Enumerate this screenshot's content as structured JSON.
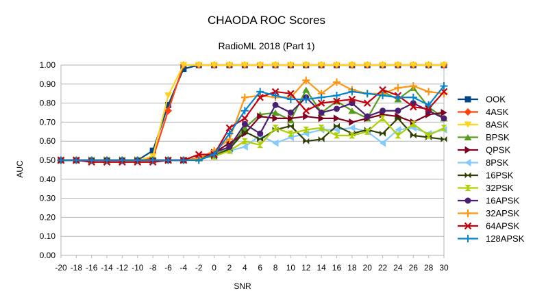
{
  "chart_data": {
    "type": "line",
    "title": "CHAODA ROC Scores",
    "subtitle": "RadioML 2018 (Part 1)",
    "xlabel": "SNR",
    "ylabel": "AUC",
    "ylim": [
      0,
      1
    ],
    "yticks": [
      "0.00",
      "0.10",
      "0.20",
      "0.30",
      "0.40",
      "0.50",
      "0.60",
      "0.70",
      "0.80",
      "0.90",
      "1.00"
    ],
    "x": [
      -20,
      -18,
      -16,
      -14,
      -12,
      -10,
      -8,
      -6,
      -4,
      -2,
      0,
      2,
      4,
      6,
      8,
      10,
      12,
      14,
      16,
      18,
      20,
      22,
      24,
      26,
      28,
      30
    ],
    "grid": true,
    "legend_position": "right",
    "series": [
      {
        "name": "OOK",
        "color": "#004586",
        "marker": "square",
        "values": [
          0.5,
          0.5,
          0.5,
          0.5,
          0.5,
          0.5,
          0.55,
          0.79,
          0.98,
          1.0,
          1.0,
          1.0,
          1.0,
          1.0,
          1.0,
          1.0,
          1.0,
          1.0,
          1.0,
          1.0,
          1.0,
          1.0,
          1.0,
          1.0,
          1.0,
          1.0
        ]
      },
      {
        "name": "4ASK",
        "color": "#ff420e",
        "marker": "diamond",
        "values": [
          0.5,
          0.5,
          0.5,
          0.5,
          0.5,
          0.5,
          0.51,
          0.76,
          1.0,
          1.0,
          1.0,
          1.0,
          1.0,
          1.0,
          1.0,
          1.0,
          1.0,
          1.0,
          1.0,
          1.0,
          1.0,
          1.0,
          1.0,
          1.0,
          1.0,
          1.0
        ]
      },
      {
        "name": "8ASK",
        "color": "#ffd320",
        "marker": "triangle-down",
        "values": [
          0.5,
          0.5,
          0.5,
          0.5,
          0.5,
          0.5,
          0.52,
          0.84,
          1.0,
          1.0,
          1.0,
          1.0,
          1.0,
          1.0,
          1.0,
          1.0,
          1.0,
          1.0,
          1.0,
          1.0,
          1.0,
          1.0,
          1.0,
          1.0,
          1.0,
          1.0
        ]
      },
      {
        "name": "BPSK",
        "color": "#579d1c",
        "marker": "triangle-up",
        "values": [
          0.5,
          0.5,
          0.5,
          0.5,
          0.5,
          0.5,
          0.5,
          0.5,
          0.5,
          0.51,
          0.53,
          0.56,
          0.67,
          0.74,
          0.75,
          0.71,
          0.87,
          0.75,
          0.81,
          0.76,
          0.72,
          0.86,
          0.82,
          0.88,
          0.78,
          0.72
        ]
      },
      {
        "name": "QPSK",
        "color": "#7e0021",
        "marker": "triangle-right",
        "values": [
          0.5,
          0.5,
          0.5,
          0.5,
          0.5,
          0.5,
          0.5,
          0.5,
          0.5,
          0.51,
          0.54,
          0.59,
          0.64,
          0.73,
          0.72,
          0.72,
          0.73,
          0.72,
          0.72,
          0.7,
          0.72,
          0.74,
          0.73,
          0.7,
          0.74,
          0.75
        ]
      },
      {
        "name": "8PSK",
        "color": "#83caff",
        "marker": "triangle-left",
        "values": [
          0.5,
          0.5,
          0.5,
          0.5,
          0.5,
          0.5,
          0.5,
          0.5,
          0.5,
          0.51,
          0.52,
          0.55,
          0.57,
          0.63,
          0.59,
          0.62,
          0.64,
          0.66,
          0.66,
          0.67,
          0.65,
          0.59,
          0.66,
          0.67,
          0.64,
          0.66
        ]
      },
      {
        "name": "16PSK",
        "color": "#314004",
        "marker": "bowtie",
        "values": [
          0.5,
          0.5,
          0.5,
          0.5,
          0.5,
          0.5,
          0.5,
          0.5,
          0.5,
          0.51,
          0.52,
          0.56,
          0.65,
          0.61,
          0.66,
          0.68,
          0.6,
          0.61,
          0.68,
          0.64,
          0.66,
          0.64,
          0.72,
          0.63,
          0.62,
          0.61
        ]
      },
      {
        "name": "32PSK",
        "color": "#aecf00",
        "marker": "hourglass",
        "values": [
          0.5,
          0.5,
          0.5,
          0.5,
          0.5,
          0.5,
          0.5,
          0.5,
          0.5,
          0.51,
          0.52,
          0.55,
          0.6,
          0.58,
          0.67,
          0.64,
          0.66,
          0.67,
          0.63,
          0.63,
          0.65,
          0.72,
          0.63,
          0.69,
          0.63,
          0.67
        ]
      },
      {
        "name": "16APSK",
        "color": "#4b1f6f",
        "marker": "circle",
        "values": [
          0.5,
          0.5,
          0.5,
          0.5,
          0.5,
          0.5,
          0.5,
          0.5,
          0.5,
          0.51,
          0.54,
          0.57,
          0.69,
          0.64,
          0.79,
          0.75,
          0.83,
          0.75,
          0.77,
          0.8,
          0.73,
          0.76,
          0.76,
          0.8,
          0.76,
          0.72
        ]
      },
      {
        "name": "32APSK",
        "color": "#ff950e",
        "marker": "plus",
        "values": [
          0.5,
          0.5,
          0.5,
          0.5,
          0.5,
          0.5,
          0.5,
          0.5,
          0.5,
          0.51,
          0.55,
          0.61,
          0.83,
          0.84,
          0.83,
          0.83,
          0.92,
          0.85,
          0.91,
          0.87,
          0.85,
          0.85,
          0.88,
          0.89,
          0.86,
          0.85
        ]
      },
      {
        "name": "64APSK",
        "color": "#c5000b",
        "marker": "x",
        "values": [
          0.5,
          0.5,
          0.49,
          0.49,
          0.49,
          0.49,
          0.49,
          0.5,
          0.5,
          0.53,
          0.53,
          0.67,
          0.72,
          0.83,
          0.86,
          0.85,
          0.76,
          0.8,
          0.81,
          0.82,
          0.8,
          0.87,
          0.84,
          0.78,
          0.77,
          0.86
        ]
      },
      {
        "name": "128APSK",
        "color": "#0084d1",
        "marker": "star",
        "values": [
          0.5,
          0.5,
          0.5,
          0.5,
          0.5,
          0.5,
          0.5,
          0.5,
          0.5,
          0.5,
          0.53,
          0.64,
          0.76,
          0.86,
          0.84,
          0.82,
          0.82,
          0.83,
          0.84,
          0.86,
          0.85,
          0.84,
          0.83,
          0.83,
          0.79,
          0.89
        ]
      }
    ]
  }
}
